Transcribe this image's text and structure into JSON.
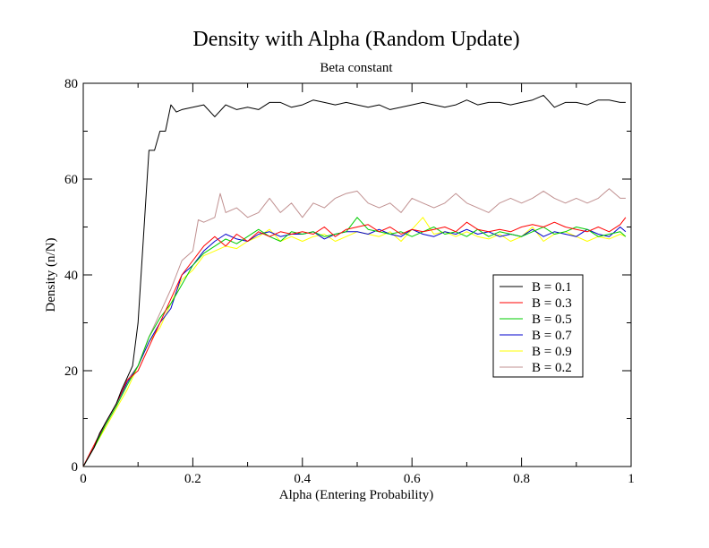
{
  "chart_data": {
    "type": "line",
    "title": "Density with Alpha (Random Update)",
    "subtitle": "Beta constant",
    "xlabel": "Alpha (Entering Probability)",
    "ylabel": "Density (n/N)",
    "xlim": [
      0,
      1
    ],
    "ylim": [
      0,
      80
    ],
    "xticks": [
      0,
      0.2,
      0.4,
      0.6,
      0.8,
      1
    ],
    "xtick_labels": [
      "0",
      "0.2",
      "0.4",
      "0.6",
      "0.8",
      "1"
    ],
    "yticks": [
      0,
      20,
      40,
      60,
      80
    ],
    "ytick_labels": [
      "0",
      "20",
      "40",
      "60",
      "80"
    ],
    "grid": false,
    "legend_position": "right-middle",
    "series": [
      {
        "name": "B = 0.1",
        "color": "#000000",
        "x": [
          0,
          0.01,
          0.02,
          0.03,
          0.04,
          0.05,
          0.06,
          0.07,
          0.08,
          0.09,
          0.1,
          0.11,
          0.12,
          0.13,
          0.14,
          0.15,
          0.16,
          0.17,
          0.18,
          0.2,
          0.22,
          0.24,
          0.26,
          0.28,
          0.3,
          0.32,
          0.34,
          0.36,
          0.38,
          0.4,
          0.42,
          0.44,
          0.46,
          0.48,
          0.5,
          0.52,
          0.54,
          0.56,
          0.58,
          0.6,
          0.62,
          0.64,
          0.66,
          0.68,
          0.7,
          0.72,
          0.74,
          0.76,
          0.78,
          0.8,
          0.82,
          0.84,
          0.86,
          0.88,
          0.9,
          0.92,
          0.94,
          0.96,
          0.98,
          0.99
        ],
        "y": [
          0,
          2,
          4,
          7,
          9,
          11,
          13,
          16,
          18.5,
          21,
          30,
          48,
          66,
          66,
          70,
          70,
          75.5,
          74,
          74.5,
          75,
          75.5,
          73,
          75.5,
          74.5,
          75,
          74.5,
          76,
          76,
          75,
          75.5,
          76.5,
          76,
          75.5,
          76,
          75.5,
          75,
          75.5,
          74.5,
          75,
          75.5,
          76,
          75.5,
          75,
          75.5,
          76.5,
          75.5,
          76,
          76,
          75.5,
          76,
          76.5,
          77.5,
          75,
          76,
          76,
          75.5,
          76.5,
          76.5,
          76,
          76
        ]
      },
      {
        "name": "B = 0.3",
        "color": "#ff0000",
        "x": [
          0,
          0.02,
          0.04,
          0.06,
          0.08,
          0.1,
          0.12,
          0.14,
          0.16,
          0.18,
          0.2,
          0.22,
          0.24,
          0.26,
          0.28,
          0.3,
          0.32,
          0.34,
          0.36,
          0.38,
          0.4,
          0.42,
          0.44,
          0.46,
          0.48,
          0.5,
          0.52,
          0.54,
          0.56,
          0.58,
          0.6,
          0.62,
          0.64,
          0.66,
          0.68,
          0.7,
          0.72,
          0.74,
          0.76,
          0.78,
          0.8,
          0.82,
          0.84,
          0.86,
          0.88,
          0.9,
          0.92,
          0.94,
          0.96,
          0.98,
          0.99
        ],
        "y": [
          0,
          4.5,
          9,
          13,
          18,
          20,
          25,
          30,
          35,
          40,
          43,
          46,
          48,
          46,
          48.5,
          47,
          49,
          48,
          49,
          48.5,
          49,
          48.5,
          50,
          48,
          49.5,
          50,
          50.5,
          49,
          50,
          48.5,
          49.5,
          49,
          49.5,
          50,
          49,
          51,
          49.5,
          49,
          49.5,
          49,
          50,
          50.5,
          50,
          51,
          50,
          49.5,
          49,
          50,
          49,
          50.5,
          52
        ]
      },
      {
        "name": "B = 0.5",
        "color": "#00cc00",
        "x": [
          0,
          0.02,
          0.04,
          0.06,
          0.08,
          0.1,
          0.12,
          0.14,
          0.16,
          0.18,
          0.2,
          0.22,
          0.24,
          0.26,
          0.28,
          0.3,
          0.32,
          0.34,
          0.36,
          0.38,
          0.4,
          0.42,
          0.44,
          0.46,
          0.48,
          0.5,
          0.52,
          0.54,
          0.56,
          0.58,
          0.6,
          0.62,
          0.64,
          0.66,
          0.68,
          0.7,
          0.72,
          0.74,
          0.76,
          0.78,
          0.8,
          0.82,
          0.84,
          0.86,
          0.88,
          0.9,
          0.92,
          0.94,
          0.96,
          0.98,
          0.99
        ],
        "y": [
          0,
          4,
          8.5,
          12.5,
          17,
          21,
          27,
          31,
          34,
          38,
          42,
          44.5,
          46,
          47.5,
          46.5,
          48,
          49.5,
          48,
          47,
          49,
          48.5,
          49,
          48,
          48.5,
          49,
          52,
          49.5,
          49,
          48.5,
          49,
          48,
          49,
          50,
          48.5,
          49,
          48,
          49.5,
          48,
          49,
          48.5,
          48,
          49,
          50,
          48.5,
          49,
          50,
          49.5,
          48,
          48.5,
          49,
          48
        ]
      },
      {
        "name": "B = 0.7",
        "color": "#0000cc",
        "x": [
          0,
          0.02,
          0.04,
          0.06,
          0.08,
          0.1,
          0.12,
          0.14,
          0.16,
          0.18,
          0.2,
          0.22,
          0.24,
          0.26,
          0.28,
          0.3,
          0.32,
          0.34,
          0.36,
          0.38,
          0.4,
          0.42,
          0.44,
          0.46,
          0.48,
          0.5,
          0.52,
          0.54,
          0.56,
          0.58,
          0.6,
          0.62,
          0.64,
          0.66,
          0.68,
          0.7,
          0.72,
          0.74,
          0.76,
          0.78,
          0.8,
          0.82,
          0.84,
          0.86,
          0.88,
          0.9,
          0.92,
          0.94,
          0.96,
          0.98,
          0.99
        ],
        "y": [
          0,
          4,
          9,
          13,
          17.5,
          21,
          26,
          30,
          33,
          40,
          42,
          45,
          47,
          48.5,
          47.5,
          47,
          48.5,
          49,
          48,
          48.5,
          48.5,
          49,
          47.5,
          48.5,
          49,
          49,
          48.5,
          49.5,
          48.5,
          48,
          49.5,
          48.5,
          48,
          49,
          48.5,
          49.5,
          48.5,
          49,
          48,
          48.5,
          48,
          49.5,
          48,
          49,
          48.5,
          48,
          49.5,
          48.5,
          48,
          50,
          49
        ]
      },
      {
        "name": "B = 0.9",
        "color": "#ffff00",
        "x": [
          0,
          0.02,
          0.04,
          0.06,
          0.08,
          0.1,
          0.12,
          0.14,
          0.16,
          0.18,
          0.2,
          0.22,
          0.24,
          0.26,
          0.28,
          0.3,
          0.32,
          0.34,
          0.36,
          0.38,
          0.4,
          0.42,
          0.44,
          0.46,
          0.48,
          0.5,
          0.52,
          0.54,
          0.56,
          0.58,
          0.6,
          0.62,
          0.64,
          0.66,
          0.68,
          0.7,
          0.72,
          0.74,
          0.76,
          0.78,
          0.8,
          0.82,
          0.84,
          0.86,
          0.88,
          0.9,
          0.92,
          0.94,
          0.96,
          0.98,
          0.99
        ],
        "y": [
          0,
          4,
          8,
          12,
          16,
          21,
          26,
          29,
          34,
          39,
          41,
          44,
          45,
          46,
          45.5,
          47,
          48,
          49.5,
          47,
          48,
          47,
          48,
          48.5,
          47,
          48,
          49,
          48.5,
          48,
          49,
          47,
          49.5,
          52,
          48.5,
          49,
          48,
          49,
          48,
          47.5,
          48.5,
          47,
          48,
          50,
          47,
          48.5,
          49,
          48,
          47,
          48,
          47.5,
          48.5,
          48
        ]
      },
      {
        "name": "B = 0.2",
        "color": "#c09090",
        "x": [
          0,
          0.02,
          0.04,
          0.06,
          0.08,
          0.1,
          0.12,
          0.14,
          0.16,
          0.18,
          0.2,
          0.21,
          0.22,
          0.24,
          0.25,
          0.26,
          0.28,
          0.3,
          0.32,
          0.34,
          0.36,
          0.38,
          0.4,
          0.42,
          0.44,
          0.46,
          0.48,
          0.5,
          0.52,
          0.54,
          0.56,
          0.58,
          0.6,
          0.62,
          0.64,
          0.66,
          0.68,
          0.7,
          0.72,
          0.74,
          0.76,
          0.78,
          0.8,
          0.82,
          0.84,
          0.86,
          0.88,
          0.9,
          0.92,
          0.94,
          0.96,
          0.98,
          0.99
        ],
        "y": [
          0,
          4.5,
          9,
          13,
          18,
          21,
          27,
          32,
          37,
          43,
          45,
          51.5,
          51,
          52,
          57,
          53,
          54,
          52,
          53,
          56,
          53,
          55,
          52,
          55,
          54,
          56,
          57,
          57.5,
          55,
          54,
          55,
          53,
          56,
          55,
          54,
          55,
          57,
          55,
          54,
          53,
          55,
          56,
          55,
          56,
          57.5,
          56,
          55,
          56,
          55,
          56,
          58,
          56,
          56
        ]
      }
    ]
  }
}
